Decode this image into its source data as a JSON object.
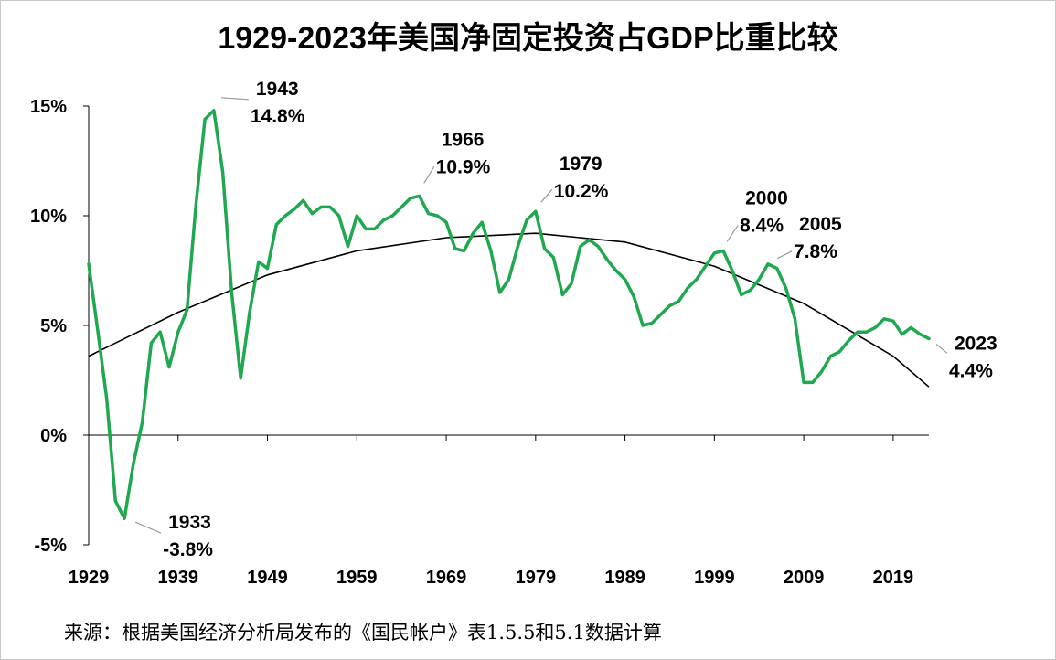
{
  "chart_data": {
    "type": "line",
    "title": "1929-2023年美国净固定投资占GDP比重比较",
    "xlabel": "",
    "ylabel": "",
    "xlim": [
      1929,
      2023
    ],
    "ylim": [
      -5,
      15
    ],
    "y_ticks": [
      {
        "value": 15,
        "label": "15%"
      },
      {
        "value": 10,
        "label": "10%"
      },
      {
        "value": 5,
        "label": "5%"
      },
      {
        "value": 0,
        "label": "0%"
      },
      {
        "value": -5,
        "label": "-5%"
      }
    ],
    "x_ticks": [
      {
        "value": 1929,
        "label": "1929"
      },
      {
        "value": 1939,
        "label": "1939"
      },
      {
        "value": 1949,
        "label": "1949"
      },
      {
        "value": 1959,
        "label": "1959"
      },
      {
        "value": 1969,
        "label": "1969"
      },
      {
        "value": 1979,
        "label": "1979"
      },
      {
        "value": 1989,
        "label": "1989"
      },
      {
        "value": 1999,
        "label": "1999"
      },
      {
        "value": 2009,
        "label": "2009"
      },
      {
        "value": 2019,
        "label": "2019"
      }
    ],
    "series": [
      {
        "name": "净固定投资占GDP比重",
        "color": "#1fa84f",
        "x": [
          1929,
          1930,
          1931,
          1932,
          1933,
          1934,
          1935,
          1936,
          1937,
          1938,
          1939,
          1940,
          1941,
          1942,
          1943,
          1944,
          1945,
          1946,
          1947,
          1948,
          1949,
          1950,
          1951,
          1952,
          1953,
          1954,
          1955,
          1956,
          1957,
          1958,
          1959,
          1960,
          1961,
          1962,
          1963,
          1964,
          1965,
          1966,
          1967,
          1968,
          1969,
          1970,
          1971,
          1972,
          1973,
          1974,
          1975,
          1976,
          1977,
          1978,
          1979,
          1980,
          1981,
          1982,
          1983,
          1984,
          1985,
          1986,
          1987,
          1988,
          1989,
          1990,
          1991,
          1992,
          1993,
          1994,
          1995,
          1996,
          1997,
          1998,
          1999,
          2000,
          2001,
          2002,
          2003,
          2004,
          2005,
          2006,
          2007,
          2008,
          2009,
          2010,
          2011,
          2012,
          2013,
          2014,
          2015,
          2016,
          2017,
          2018,
          2019,
          2020,
          2021,
          2022,
          2023
        ],
        "values": [
          7.8,
          4.8,
          1.7,
          -3.0,
          -3.8,
          -1.3,
          0.6,
          4.2,
          4.7,
          3.1,
          4.7,
          5.7,
          10.5,
          14.4,
          14.8,
          12.0,
          6.5,
          2.6,
          5.6,
          7.9,
          7.6,
          9.6,
          10.0,
          10.3,
          10.7,
          10.1,
          10.4,
          10.4,
          10.0,
          8.6,
          10.0,
          9.4,
          9.4,
          9.8,
          10.0,
          10.4,
          10.8,
          10.9,
          10.1,
          10.0,
          9.7,
          8.5,
          8.4,
          9.2,
          9.7,
          8.4,
          6.5,
          7.1,
          8.6,
          9.8,
          10.2,
          8.5,
          8.1,
          6.4,
          6.9,
          8.6,
          8.9,
          8.6,
          8.0,
          7.5,
          7.1,
          6.3,
          5.0,
          5.1,
          5.5,
          5.9,
          6.1,
          6.7,
          7.1,
          7.7,
          8.3,
          8.4,
          7.5,
          6.4,
          6.6,
          7.1,
          7.8,
          7.6,
          6.7,
          5.3,
          2.4,
          2.4,
          2.9,
          3.6,
          3.8,
          4.3,
          4.7,
          4.7,
          4.9,
          5.3,
          5.2,
          4.6,
          4.9,
          4.6,
          4.4
        ]
      },
      {
        "name": "趋势线",
        "color": "#000000",
        "x": [
          1929,
          1939,
          1949,
          1959,
          1969,
          1979,
          1989,
          1999,
          2009,
          2019,
          2023
        ],
        "values": [
          3.6,
          5.6,
          7.3,
          8.4,
          9.0,
          9.2,
          8.8,
          7.7,
          6.0,
          3.6,
          2.2
        ]
      }
    ],
    "annotations": [
      {
        "year": 1943,
        "value": 14.8,
        "label_year": "1943",
        "label_value": "14.8%"
      },
      {
        "year": 1933,
        "value": -3.8,
        "label_year": "1933",
        "label_value": "-3.8%"
      },
      {
        "year": 1966,
        "value": 10.9,
        "label_year": "1966",
        "label_value": "10.9%"
      },
      {
        "year": 1979,
        "value": 10.2,
        "label_year": "1979",
        "label_value": "10.2%"
      },
      {
        "year": 2000,
        "value": 8.4,
        "label_year": "2000",
        "label_value": "8.4%"
      },
      {
        "year": 2005,
        "value": 7.8,
        "label_year": "2005",
        "label_value": "7.8%"
      },
      {
        "year": 2023,
        "value": 4.4,
        "label_year": "2023",
        "label_value": "4.4%"
      }
    ],
    "grid": false,
    "legend": "none"
  },
  "source_note": "来源：根据美国经济分析局发布的《国民帐户》表1.5.5和5.1数据计算"
}
